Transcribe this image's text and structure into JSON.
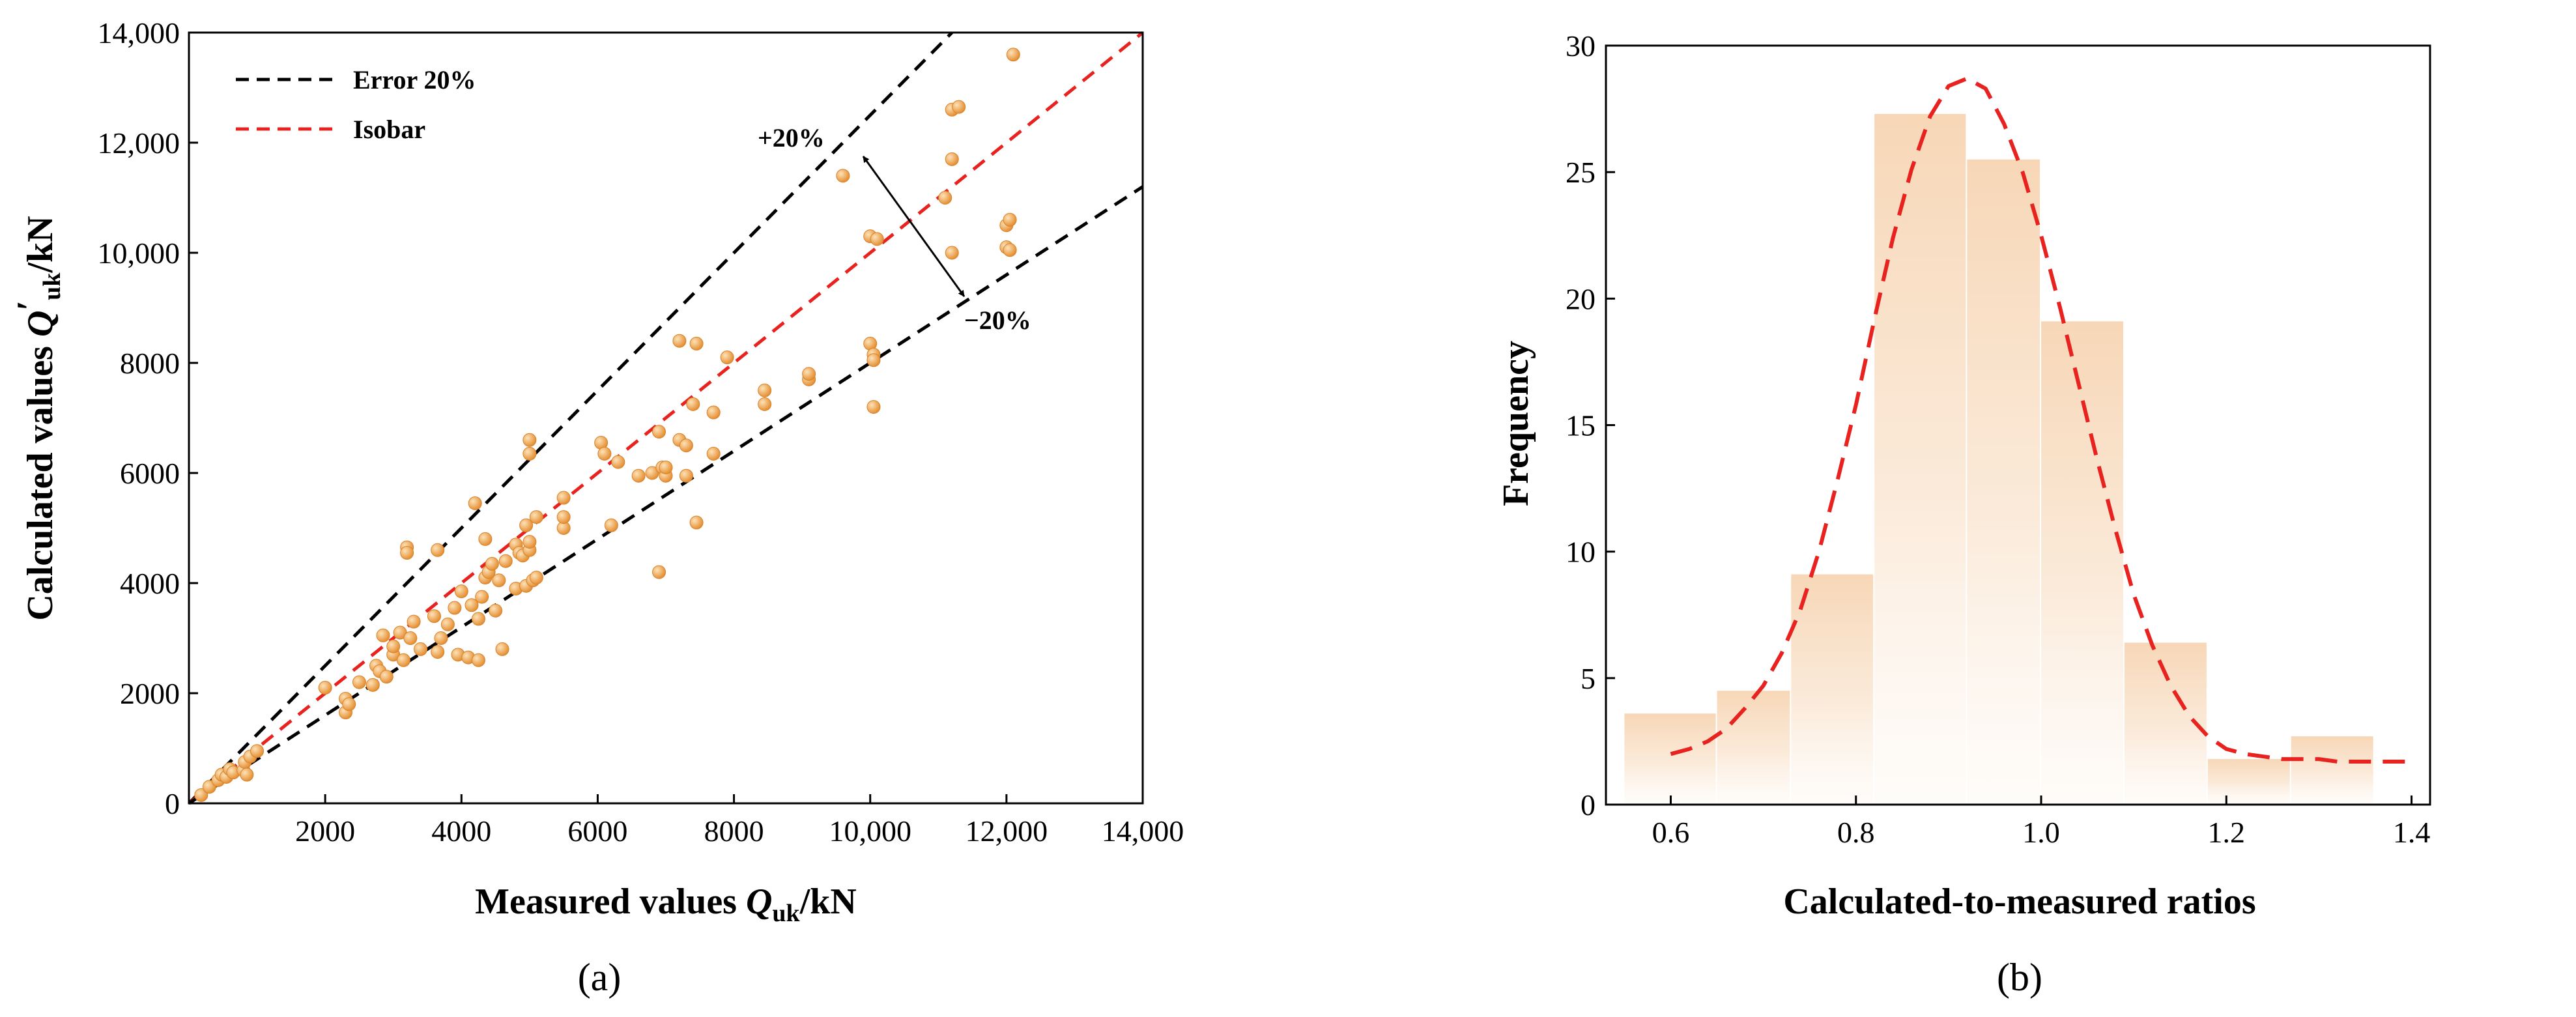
{
  "chart_data": [
    {
      "type": "scatter",
      "panel_label": "(a)",
      "xlabel_prefix": "Measured values ",
      "xlabel_var": "Q",
      "xlabel_sub": "uk",
      "xlabel_suffix": "/kN",
      "ylabel_prefix": "Calculated values ",
      "ylabel_var": "Q",
      "ylabel_prime": "′",
      "ylabel_sub": "uk",
      "ylabel_suffix": "/kN",
      "xlim": [
        0,
        14000
      ],
      "ylim": [
        0,
        14000
      ],
      "xticks": [
        2000,
        4000,
        6000,
        8000,
        10000,
        12000,
        14000
      ],
      "xtick_labels": [
        "2000",
        "4000",
        "6000",
        "8000",
        "10,000",
        "12,000",
        "14,000"
      ],
      "yticks": [
        0,
        2000,
        4000,
        6000,
        8000,
        10000,
        12000,
        14000
      ],
      "ytick_labels": [
        "0",
        "2000",
        "4000",
        "6000",
        "8000",
        "10,000",
        "12,000",
        "14,000"
      ],
      "legend": [
        {
          "label": "Error 20%",
          "color": "#000000",
          "style": "dashed"
        },
        {
          "label": "Isobar",
          "color": "#e8231f",
          "style": "dashed"
        }
      ],
      "lines": [
        {
          "name": "upper",
          "slope": 1.25,
          "color": "#000000"
        },
        {
          "name": "isobar",
          "slope": 1.0,
          "color": "#e8231f"
        },
        {
          "name": "lower",
          "slope": 0.8,
          "color": "#000000"
        }
      ],
      "annotations": {
        "plus": "+20%",
        "minus": "−20%"
      },
      "point_color": "#f0a040",
      "points": [
        [
          180,
          150
        ],
        [
          300,
          300
        ],
        [
          430,
          420
        ],
        [
          480,
          520
        ],
        [
          550,
          480
        ],
        [
          600,
          620
        ],
        [
          650,
          560
        ],
        [
          800,
          600
        ],
        [
          820,
          750
        ],
        [
          850,
          520
        ],
        [
          900,
          850
        ],
        [
          1000,
          950
        ],
        [
          2000,
          2100
        ],
        [
          2300,
          1650
        ],
        [
          2300,
          1900
        ],
        [
          2350,
          1800
        ],
        [
          2500,
          2200
        ],
        [
          2700,
          2150
        ],
        [
          2750,
          2500
        ],
        [
          2800,
          2400
        ],
        [
          2850,
          3050
        ],
        [
          2900,
          2300
        ],
        [
          3000,
          2700
        ],
        [
          3000,
          2850
        ],
        [
          3100,
          3100
        ],
        [
          3150,
          2600
        ],
        [
          3200,
          4650
        ],
        [
          3200,
          4550
        ],
        [
          3250,
          3000
        ],
        [
          3300,
          3300
        ],
        [
          3400,
          2800
        ],
        [
          3600,
          3400
        ],
        [
          3650,
          4600
        ],
        [
          3650,
          2750
        ],
        [
          3700,
          3000
        ],
        [
          3800,
          3250
        ],
        [
          3900,
          3550
        ],
        [
          3950,
          2700
        ],
        [
          4000,
          3850
        ],
        [
          4100,
          2650
        ],
        [
          4150,
          3600
        ],
        [
          4200,
          5450
        ],
        [
          4250,
          2600
        ],
        [
          4250,
          3350
        ],
        [
          4300,
          3750
        ],
        [
          4350,
          4100
        ],
        [
          4350,
          4800
        ],
        [
          4400,
          4200
        ],
        [
          4450,
          4350
        ],
        [
          4500,
          3500
        ],
        [
          4550,
          4050
        ],
        [
          4600,
          2800
        ],
        [
          4650,
          4400
        ],
        [
          4800,
          3900
        ],
        [
          4800,
          4700
        ],
        [
          4850,
          4550
        ],
        [
          4900,
          4500
        ],
        [
          4950,
          3950
        ],
        [
          4950,
          5050
        ],
        [
          5000,
          4600
        ],
        [
          5000,
          4750
        ],
        [
          5000,
          6600
        ],
        [
          5000,
          6350
        ],
        [
          5050,
          4050
        ],
        [
          5100,
          5200
        ],
        [
          5100,
          4100
        ],
        [
          5500,
          5550
        ],
        [
          5500,
          5000
        ],
        [
          5500,
          5200
        ],
        [
          6050,
          6550
        ],
        [
          6100,
          6350
        ],
        [
          6200,
          5050
        ],
        [
          6300,
          6200
        ],
        [
          6600,
          5950
        ],
        [
          6800,
          6000
        ],
        [
          6900,
          6750
        ],
        [
          6900,
          4200
        ],
        [
          6950,
          6100
        ],
        [
          7000,
          5950
        ],
        [
          7000,
          6100
        ],
        [
          7200,
          6600
        ],
        [
          7200,
          8400
        ],
        [
          7300,
          6500
        ],
        [
          7300,
          5950
        ],
        [
          7400,
          7250
        ],
        [
          7450,
          8350
        ],
        [
          7450,
          5100
        ],
        [
          7700,
          6350
        ],
        [
          7700,
          7100
        ],
        [
          7900,
          8100
        ],
        [
          8450,
          7500
        ],
        [
          8450,
          7250
        ],
        [
          9100,
          7700
        ],
        [
          9100,
          7800
        ],
        [
          9600,
          11400
        ],
        [
          10000,
          10300
        ],
        [
          10000,
          8350
        ],
        [
          10050,
          8150
        ],
        [
          10050,
          8050
        ],
        [
          10050,
          7200
        ],
        [
          10100,
          10250
        ],
        [
          11100,
          11000
        ],
        [
          11200,
          12600
        ],
        [
          11200,
          11700
        ],
        [
          11200,
          10000
        ],
        [
          11300,
          12650
        ],
        [
          12000,
          10100
        ],
        [
          12000,
          10500
        ],
        [
          12050,
          10600
        ],
        [
          12050,
          10050
        ],
        [
          12100,
          13600
        ]
      ]
    },
    {
      "type": "bar",
      "panel_label": "(b)",
      "xlabel": "Calculated-to-measured ratios",
      "ylabel": "Frequency",
      "xlim": [
        0.53,
        1.42
      ],
      "ylim": [
        0,
        30
      ],
      "xticks": [
        0.6,
        0.8,
        1.0,
        1.2,
        1.4
      ],
      "xtick_labels": [
        "0.6",
        "0.8",
        "1.0",
        "1.2",
        "1.4"
      ],
      "yticks": [
        0,
        5,
        10,
        15,
        20,
        25,
        30
      ],
      "ytick_labels": [
        "0",
        "5",
        "10",
        "15",
        "20",
        "25",
        "30"
      ],
      "bin_edges": [
        0.55,
        0.65,
        0.73,
        0.82,
        0.92,
        1.0,
        1.09,
        1.18,
        1.27,
        1.36
      ],
      "values": [
        3.6,
        4.5,
        9.1,
        27.3,
        25.5,
        19.1,
        6.4,
        1.8,
        2.7
      ],
      "bar_color": "#f6d2ae",
      "curve_color": "#e8231f",
      "fit_curve": {
        "x": [
          0.6,
          0.62,
          0.64,
          0.66,
          0.68,
          0.7,
          0.72,
          0.74,
          0.76,
          0.78,
          0.8,
          0.82,
          0.84,
          0.86,
          0.88,
          0.9,
          0.92,
          0.94,
          0.96,
          0.98,
          1.0,
          1.02,
          1.04,
          1.06,
          1.08,
          1.1,
          1.12,
          1.14,
          1.16,
          1.18,
          1.2,
          1.22,
          1.24,
          1.26,
          1.28,
          1.3,
          1.32,
          1.34,
          1.36,
          1.38,
          1.4
        ],
        "y": [
          2.0,
          2.2,
          2.5,
          3.0,
          3.8,
          4.7,
          6.0,
          7.7,
          10.0,
          12.8,
          15.8,
          19.2,
          22.4,
          25.1,
          27.2,
          28.4,
          28.7,
          28.3,
          26.9,
          25.0,
          22.5,
          19.7,
          16.7,
          13.7,
          10.9,
          8.3,
          6.3,
          4.7,
          3.5,
          2.7,
          2.2,
          2.0,
          1.9,
          1.8,
          1.8,
          1.8,
          1.7,
          1.7,
          1.7,
          1.7,
          1.7
        ]
      }
    }
  ]
}
